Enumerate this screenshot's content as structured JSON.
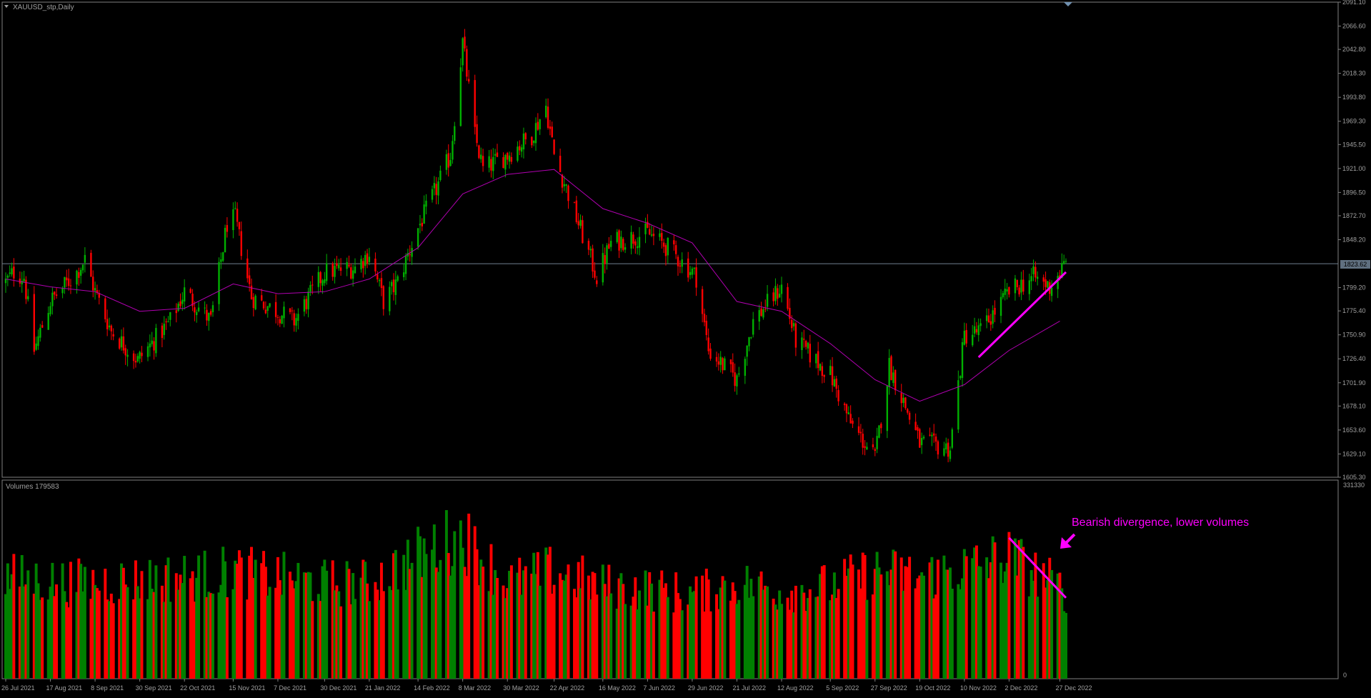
{
  "window": {
    "title": "XAUUSD_stp,Daily",
    "menu_icon": "triangle-down-icon",
    "shift_marker_icon": "triangle-down-icon"
  },
  "colors": {
    "background": "#000000",
    "frame": "#808080",
    "text": "#808080",
    "bull": "#00b000",
    "bear": "#ff0000",
    "ma": "#b000b0",
    "annotation": "#ff00ff",
    "current_line": "#708090",
    "vol_up": "#008000",
    "vol_down": "#ff0000"
  },
  "price_panel": {
    "y_ticks": [
      "2091.10",
      "2066.60",
      "2042.80",
      "2018.30",
      "1993.80",
      "1969.30",
      "1945.50",
      "1921.00",
      "1896.50",
      "1872.70",
      "1848.20",
      "1823.62",
      "1799.20",
      "1775.40",
      "1750.90",
      "1726.40",
      "1701.90",
      "1678.10",
      "1653.60",
      "1629.10",
      "1605.30"
    ],
    "current_price": "1823.62",
    "ylim": [
      1605.3,
      2091.1
    ]
  },
  "volume_panel": {
    "label": "Volumes 179583",
    "y_max_label": "331330",
    "y_min_label": "0",
    "ylim": [
      0,
      331330
    ]
  },
  "x_axis": {
    "labels": [
      "26 Jul 2021",
      "17 Aug 2021",
      "8 Sep 2021",
      "30 Sep 2021",
      "22 Oct 2021",
      "15 Nov 2021",
      "7 Dec 2021",
      "30 Dec 2021",
      "21 Jan 2022",
      "14 Feb 2022",
      "8 Mar 2022",
      "30 Mar 2022",
      "22 Apr 2022",
      "16 May 2022",
      "7 Jun 2022",
      "29 Jun 2022",
      "21 Jul 2022",
      "12 Aug 2022",
      "5 Sep 2022",
      "27 Sep 2022",
      "19 Oct 2022",
      "10 Nov 2022",
      "2 Dec 2022",
      "27 Dec 2022"
    ]
  },
  "annotation": {
    "text": "Bearish divergence, lower volumes",
    "arrow_icon": "arrow-down-left-icon"
  },
  "chart_data": {
    "type": "candlestick",
    "title": "XAUUSD_stp,Daily",
    "symbol": "XAUUSD",
    "timeframe": "Daily",
    "date_range": [
      "26 Jul 2021",
      "30 Dec 2022"
    ],
    "ylim": [
      1605.3,
      2091.1
    ],
    "current_price": 1823.62,
    "price_path": [
      {
        "date": "26 Jul 2021",
        "close": 1805
      },
      {
        "date": "30 Jul 2021",
        "close": 1815
      },
      {
        "date": "4 Aug 2021",
        "close": 1810
      },
      {
        "date": "9 Aug 2021",
        "close": 1735
      },
      {
        "date": "17 Aug 2021",
        "close": 1785
      },
      {
        "date": "30 Aug 2021",
        "close": 1815
      },
      {
        "date": "3 Sep 2021",
        "close": 1828
      },
      {
        "date": "8 Sep 2021",
        "close": 1795
      },
      {
        "date": "16 Sep 2021",
        "close": 1755
      },
      {
        "date": "29 Sep 2021",
        "close": 1725
      },
      {
        "date": "15 Oct 2021",
        "close": 1765
      },
      {
        "date": "22 Oct 2021",
        "close": 1795
      },
      {
        "date": "4 Nov 2021",
        "close": 1765
      },
      {
        "date": "12 Nov 2021",
        "close": 1865
      },
      {
        "date": "16 Nov 2021",
        "close": 1870
      },
      {
        "date": "24 Nov 2021",
        "close": 1790
      },
      {
        "date": "15 Dec 2021",
        "close": 1765
      },
      {
        "date": "30 Dec 2021",
        "close": 1815
      },
      {
        "date": "14 Jan 2022",
        "close": 1820
      },
      {
        "date": "21 Jan 2022",
        "close": 1835
      },
      {
        "date": "28 Jan 2022",
        "close": 1785
      },
      {
        "date": "4 Feb 2022",
        "close": 1805
      },
      {
        "date": "14 Feb 2022",
        "close": 1860
      },
      {
        "date": "24 Feb 2022",
        "close": 1905
      },
      {
        "date": "2 Mar 2022",
        "close": 1935
      },
      {
        "date": "8 Mar 2022",
        "close": 2050
      },
      {
        "date": "14 Mar 2022",
        "close": 1955
      },
      {
        "date": "18 Mar 2022",
        "close": 1920
      },
      {
        "date": "30 Mar 2022",
        "close": 1935
      },
      {
        "date": "11 Apr 2022",
        "close": 1955
      },
      {
        "date": "18 Apr 2022",
        "close": 1985
      },
      {
        "date": "22 Apr 2022",
        "close": 1935
      },
      {
        "date": "29 Apr 2022",
        "close": 1895
      },
      {
        "date": "13 May 2022",
        "close": 1810
      },
      {
        "date": "20 May 2022",
        "close": 1845
      },
      {
        "date": "7 Jun 2022",
        "close": 1855
      },
      {
        "date": "17 Jun 2022",
        "close": 1840
      },
      {
        "date": "29 Jun 2022",
        "close": 1815
      },
      {
        "date": "1 Jul 2022",
        "close": 1810
      },
      {
        "date": "7 Jul 2022",
        "close": 1735
      },
      {
        "date": "21 Jul 2022",
        "close": 1705
      },
      {
        "date": "29 Jul 2022",
        "close": 1765
      },
      {
        "date": "12 Aug 2022",
        "close": 1800
      },
      {
        "date": "19 Aug 2022",
        "close": 1745
      },
      {
        "date": "5 Sep 2022",
        "close": 1710
      },
      {
        "date": "15 Sep 2022",
        "close": 1660
      },
      {
        "date": "27 Sep 2022",
        "close": 1625
      },
      {
        "date": "4 Oct 2022",
        "close": 1720
      },
      {
        "date": "19 Oct 2022",
        "close": 1640
      },
      {
        "date": "3 Nov 2022",
        "close": 1635
      },
      {
        "date": "10 Nov 2022",
        "close": 1750
      },
      {
        "date": "18 Nov 2022",
        "close": 1755
      },
      {
        "date": "2 Dec 2022",
        "close": 1795
      },
      {
        "date": "14 Dec 2022",
        "close": 1810
      },
      {
        "date": "22 Dec 2022",
        "close": 1800
      },
      {
        "date": "30 Dec 2022",
        "close": 1823.62
      }
    ],
    "moving_average": [
      {
        "date": "26 Jul 2021",
        "value": 1808
      },
      {
        "date": "17 Aug 2021",
        "value": 1800
      },
      {
        "date": "8 Sep 2021",
        "value": 1795
      },
      {
        "date": "30 Sep 2021",
        "value": 1775
      },
      {
        "date": "22 Oct 2021",
        "value": 1778
      },
      {
        "date": "15 Nov 2021",
        "value": 1803
      },
      {
        "date": "7 Dec 2021",
        "value": 1793
      },
      {
        "date": "30 Dec 2021",
        "value": 1795
      },
      {
        "date": "21 Jan 2022",
        "value": 1808
      },
      {
        "date": "14 Feb 2022",
        "value": 1840
      },
      {
        "date": "8 Mar 2022",
        "value": 1895
      },
      {
        "date": "30 Mar 2022",
        "value": 1915
      },
      {
        "date": "22 Apr 2022",
        "value": 1920
      },
      {
        "date": "16 May 2022",
        "value": 1880
      },
      {
        "date": "7 Jun 2022",
        "value": 1865
      },
      {
        "date": "29 Jun 2022",
        "value": 1845
      },
      {
        "date": "21 Jul 2022",
        "value": 1785
      },
      {
        "date": "12 Aug 2022",
        "value": 1775
      },
      {
        "date": "5 Sep 2022",
        "value": 1742
      },
      {
        "date": "27 Sep 2022",
        "value": 1705
      },
      {
        "date": "19 Oct 2022",
        "value": 1683
      },
      {
        "date": "10 Nov 2022",
        "value": 1700
      },
      {
        "date": "2 Dec 2022",
        "value": 1735
      },
      {
        "date": "27 Dec 2022",
        "value": 1765
      }
    ],
    "trendline": {
      "from": {
        "date": "17 Nov 2022",
        "value": 1728
      },
      "to": {
        "date": "30 Dec 2022",
        "value": 1815
      }
    },
    "volume_trendline": {
      "from": {
        "date": "2 Dec 2022",
        "value": 235000
      },
      "to": {
        "date": "30 Dec 2022",
        "value": 135000
      }
    },
    "volume_profile": [
      {
        "date": "26 Jul 2021",
        "value": 175000
      },
      {
        "date": "26 Aug 2021",
        "value": 165000
      },
      {
        "date": "30 Sep 2021",
        "value": 170000
      },
      {
        "date": "22 Oct 2021",
        "value": 175000
      },
      {
        "date": "15 Nov 2021",
        "value": 185000
      },
      {
        "date": "30 Dec 2021",
        "value": 165000
      },
      {
        "date": "21 Jan 2022",
        "value": 165000
      },
      {
        "date": "24 Feb 2022",
        "value": 230000
      },
      {
        "date": "8 Mar 2022",
        "value": 245000
      },
      {
        "date": "30 Mar 2022",
        "value": 165000
      },
      {
        "date": "22 Apr 2022",
        "value": 185000
      },
      {
        "date": "16 May 2022",
        "value": 160000
      },
      {
        "date": "7 Jun 2022",
        "value": 155000
      },
      {
        "date": "29 Jun 2022",
        "value": 145000
      },
      {
        "date": "21 Jul 2022",
        "value": 165000
      },
      {
        "date": "12 Aug 2022",
        "value": 150000
      },
      {
        "date": "5 Sep 2022",
        "value": 160000
      },
      {
        "date": "27 Sep 2022",
        "value": 185000
      },
      {
        "date": "19 Oct 2022",
        "value": 175000
      },
      {
        "date": "10 Nov 2022",
        "value": 190000
      },
      {
        "date": "2 Dec 2022",
        "value": 210000
      },
      {
        "date": "30 Dec 2022",
        "value": 150000
      }
    ],
    "series": [
      {
        "name": "XAUUSD_stp,Daily",
        "type": "candlestick"
      },
      {
        "name": "Volumes",
        "type": "bar",
        "last_value": 179583
      }
    ]
  }
}
